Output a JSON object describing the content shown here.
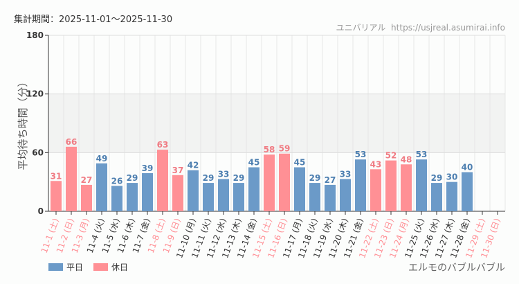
{
  "header": {
    "period": "集計期間：2025-11-01～2025-11-30",
    "site": "ユニバリアル  https://usjreal.asumirai.info"
  },
  "footer": {
    "attraction": "エルモのバブルバブル"
  },
  "chart_data": {
    "type": "bar",
    "ylabel": "平均待ち時間（分）",
    "ylim": [
      0,
      180
    ],
    "yticks": [
      "0",
      "60",
      "120",
      "180"
    ],
    "grid": true,
    "legend_position": "bottom-left",
    "legend": [
      {
        "name": "平日",
        "color": "#6b9ac8"
      },
      {
        "name": "休日",
        "color": "#ff9095"
      }
    ],
    "categories": [
      "11-1 (土)",
      "11-2 (日)",
      "11-3 (月)",
      "11-4 (火)",
      "11-5 (水)",
      "11-6 (木)",
      "11-7 (金)",
      "11-8 (土)",
      "11-9 (日)",
      "11-10 (月)",
      "11-11 (火)",
      "11-12 (水)",
      "11-13 (木)",
      "11-14 (金)",
      "11-15 (土)",
      "11-16 (日)",
      "11-17 (月)",
      "11-18 (火)",
      "11-19 (水)",
      "11-20 (木)",
      "11-21 (金)",
      "11-22 (土)",
      "11-23 (日)",
      "11-24 (月)",
      "11-25 (火)",
      "11-26 (水)",
      "11-27 (木)",
      "11-28 (金)",
      "11-29 (土)",
      "11-30 (日)"
    ],
    "holiday": [
      1,
      1,
      1,
      0,
      0,
      0,
      0,
      1,
      1,
      0,
      0,
      0,
      0,
      0,
      1,
      1,
      0,
      0,
      0,
      0,
      0,
      1,
      1,
      1,
      0,
      0,
      0,
      0,
      1,
      1
    ],
    "values": [
      31,
      66,
      27,
      49,
      26,
      29,
      39,
      63,
      37,
      42,
      29,
      33,
      29,
      45,
      58,
      59,
      45,
      29,
      27,
      33,
      53,
      43,
      52,
      48,
      53,
      29,
      30,
      40,
      null,
      null
    ]
  }
}
